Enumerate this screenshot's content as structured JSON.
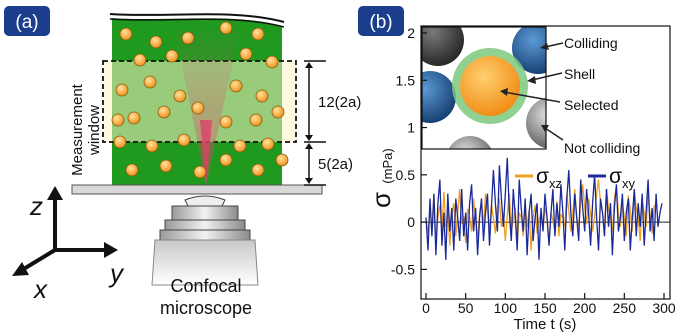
{
  "panel_a": {
    "tag": "(a)",
    "window_label_line1": "Measurement",
    "window_label_line2": "window",
    "dim_top": "12(2a)",
    "dim_bottom": "5(2a)",
    "axis_z": "z",
    "axis_x": "x",
    "axis_y": "y",
    "microscope_line1": "Confocal",
    "microscope_line2": "microscope",
    "colors": {
      "fluid": "#1f9a1f",
      "particle": "#f5a63a",
      "window_fill": "#fbf6c6",
      "laser": "#e0406a"
    }
  },
  "panel_b": {
    "tag": "(b)",
    "inset": {
      "colliding": "Colliding",
      "shell": "Shell",
      "selected": "Selected",
      "not_colliding": "Not colliding"
    },
    "ylabel_sigma": "σ",
    "ylabel_unit": "(mPa)",
    "legend_xz_sym": "σ",
    "legend_xz_sub": "xz",
    "legend_xy_sym": "σ",
    "legend_xy_sub": "xy",
    "xlabel": "Time t (s)"
  },
  "chart_data": {
    "type": "line",
    "xlabel": "Time t (s)",
    "ylabel": "σ (mPa)",
    "xlim": [
      0,
      300
    ],
    "ylim": [
      -0.75,
      2
    ],
    "xticks": [
      0,
      50,
      100,
      150,
      200,
      250,
      300
    ],
    "yticks": [
      -0.5,
      0,
      0.5,
      1,
      1.5,
      2
    ],
    "x_start": 0,
    "x_step": 2.5,
    "series": [
      {
        "name": "σxz",
        "color": "#f0a020",
        "values": [
          0.02,
          -0.12,
          0.15,
          -0.08,
          0.28,
          -0.2,
          0.05,
          0.18,
          -0.1,
          0.32,
          -0.05,
          0.12,
          -0.25,
          0.08,
          0.2,
          -0.15,
          0.1,
          0.35,
          -0.02,
          0.06,
          -0.22,
          0.14,
          0.05,
          -0.1,
          0.25,
          0.02,
          -0.18,
          0.1,
          0.22,
          -0.05,
          0.3,
          0.12,
          -0.08,
          0.18,
          0.05,
          -0.12,
          0.15,
          0.25,
          -0.05,
          0.1,
          -0.2,
          0.08,
          0.3,
          -0.1,
          0.02,
          0.15,
          -0.25,
          0.1,
          0.05,
          -0.15,
          0.2,
          -0.05,
          0.12,
          -0.3,
          0.05,
          0.18,
          -0.12,
          0.02,
          0.1,
          -0.08,
          0.15,
          0.05,
          -0.2,
          0.1,
          0.02,
          -0.1,
          0.22,
          -0.15,
          0.08,
          0.05,
          -0.05,
          0.3,
          0.12,
          -0.1,
          0.1,
          0.35,
          0.05,
          -0.05,
          0.2,
          0.4,
          0.15,
          -0.02,
          0.25,
          0.1,
          -0.1,
          0.05,
          0.3,
          0.45,
          0.2,
          0.1,
          -0.05,
          0.35,
          0.15,
          0.05,
          -0.1,
          0.25,
          0.38,
          0.1,
          -0.05,
          0.2,
          0.05,
          -0.15,
          0.28,
          0.12,
          -0.1,
          0.35,
          0.15,
          0.05,
          -0.2,
          0.22,
          0.1,
          -0.05,
          0.3,
          0.08,
          -0.12,
          0.18
        ]
      },
      {
        "name": "σxy",
        "color": "#1a2a9a",
        "values": [
          0.05,
          -0.3,
          0.25,
          -0.15,
          0.3,
          -0.35,
          0.2,
          0.45,
          -0.25,
          0.1,
          -0.4,
          0.3,
          -0.1,
          0.15,
          -0.3,
          0.25,
          0.05,
          -0.2,
          0.35,
          -0.15,
          0.1,
          -0.3,
          0.2,
          0.4,
          -0.1,
          0.15,
          -0.35,
          0.05,
          0.25,
          -0.2,
          0.1,
          0.3,
          -0.25,
          0.15,
          0.55,
          0.2,
          -0.1,
          0.6,
          0.25,
          -0.05,
          0.3,
          0.68,
          0.1,
          -0.2,
          0.35,
          0.05,
          -0.3,
          0.45,
          0.15,
          -0.1,
          0.25,
          -0.35,
          0.1,
          0.3,
          -0.2,
          0.05,
          0.2,
          -0.4,
          0.15,
          -0.1,
          0.3,
          0.05,
          -0.25,
          0.1,
          0.35,
          -0.15,
          0.2,
          -0.05,
          0.4,
          0.1,
          -0.3,
          0.25,
          0.55,
          0.1,
          -0.15,
          0.3,
          0.05,
          -0.2,
          0.45,
          0.15,
          -0.1,
          0.35,
          0.1,
          -0.25,
          0.2,
          0.5,
          0.05,
          -0.3,
          0.25,
          0.1,
          -0.15,
          0.35,
          -0.05,
          0.2,
          -0.35,
          0.15,
          0.4,
          -0.1,
          0.05,
          0.3,
          -0.2,
          0.1,
          0.25,
          -0.3,
          0.05,
          0.35,
          -0.15,
          0.2,
          -0.05,
          0.3,
          -0.25,
          0.1,
          0.45,
          -0.1,
          0.15,
          -0.2,
          0.3,
          -0.05,
          0.1,
          0.2
        ]
      }
    ]
  }
}
